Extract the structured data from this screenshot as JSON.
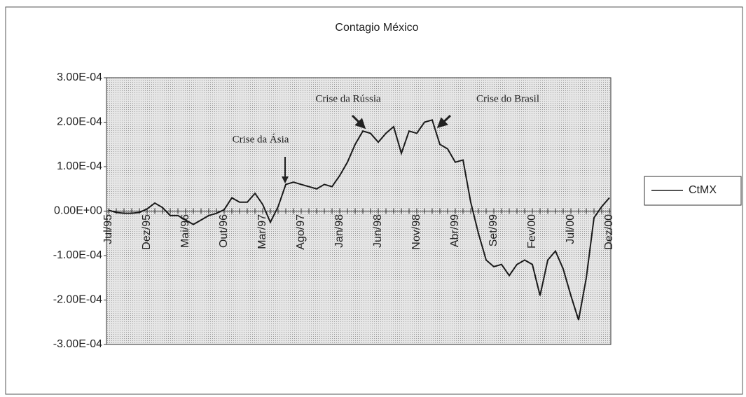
{
  "chart_data": {
    "type": "line",
    "title": "Contagio México",
    "categories": [
      "Jul/95",
      null,
      null,
      null,
      null,
      "Dez/95",
      null,
      null,
      null,
      null,
      "Mai/96",
      null,
      null,
      null,
      null,
      "Out/96",
      null,
      null,
      null,
      null,
      "Mar/97",
      null,
      null,
      null,
      null,
      "Ago/97",
      null,
      null,
      null,
      null,
      "Jan/98",
      null,
      null,
      null,
      null,
      "Jun/98",
      null,
      null,
      null,
      null,
      "Nov/98",
      null,
      null,
      null,
      null,
      "Abr/99",
      null,
      null,
      null,
      null,
      "Set/99",
      null,
      null,
      null,
      null,
      "Fev/00",
      null,
      null,
      null,
      null,
      "Jul/00",
      null,
      null,
      null,
      null,
      "Dez/00"
    ],
    "series": [
      {
        "name": "CtMX",
        "color": "#1a1a1a",
        "values": [
          2e-06,
          -3e-06,
          -5e-06,
          -5e-06,
          -3e-06,
          5e-06,
          1.8e-05,
          8e-06,
          -1e-05,
          -1e-05,
          -2e-05,
          -3e-05,
          -2e-05,
          -1e-05,
          -5e-06,
          3e-06,
          3e-05,
          2e-05,
          2e-05,
          4e-05,
          1.5e-05,
          -2.5e-05,
          1e-05,
          6e-05,
          6.5e-05,
          6e-05,
          5.5e-05,
          5e-05,
          6e-05,
          5.5e-05,
          8e-05,
          0.00011,
          0.00015,
          0.00018,
          0.000175,
          0.000155,
          0.000175,
          0.00019,
          0.00013,
          0.00018,
          0.000175,
          0.0002,
          0.000205,
          0.00015,
          0.00014,
          0.00011,
          0.000115,
          2e-05,
          -5e-05,
          -0.00011,
          -0.000125,
          -0.00012,
          -0.000145,
          -0.00012,
          -0.00011,
          -0.00012,
          -0.00019,
          -0.00011,
          -9e-05,
          -0.00013,
          -0.00019,
          -0.000245,
          -0.00015,
          -1.5e-05,
          1e-05,
          3e-05
        ]
      }
    ],
    "ylim": [
      -0.0003,
      0.0003
    ],
    "yticks": [
      {
        "value": -0.0003,
        "label": "-3.00E-04"
      },
      {
        "value": -0.0002,
        "label": "-2.00E-04"
      },
      {
        "value": -0.0001,
        "label": "-1.00E-04"
      },
      {
        "value": 0,
        "label": "0.00E+00"
      },
      {
        "value": 0.0001,
        "label": "1.00E-04"
      },
      {
        "value": 0.0002,
        "label": "2.00E-04"
      },
      {
        "value": 0.0003,
        "label": "3.00E-04"
      }
    ],
    "annotations": [
      "Crise da Ásia",
      "Crise da Rússia",
      "Crise do Brasil"
    ],
    "legend": "right"
  }
}
